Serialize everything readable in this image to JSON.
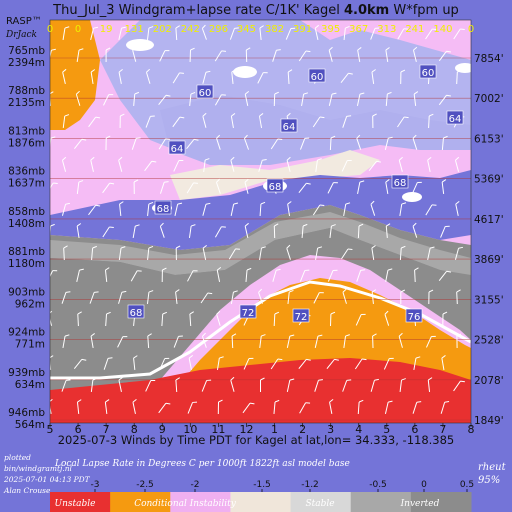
{
  "chart_data": {
    "type": "heatmap",
    "title_prefix": "Thu_Jul_3 Windgram+lapse rate C/1K'  Kagel ",
    "title_bold": "4.0km",
    "title_suffix": "  W*fpm up",
    "brand": "RASP™",
    "brand_sub": "DrJack",
    "top_values": [
      "0",
      "0",
      "19",
      "131",
      "202",
      "242",
      "296",
      "345",
      "382",
      "391",
      "395",
      "367",
      "313",
      "241",
      "140",
      "0"
    ],
    "x_ticks": [
      "5",
      "6",
      "7",
      "8",
      "9",
      "10",
      "11",
      "12",
      "1",
      "2",
      "3",
      "4",
      "5",
      "6",
      "7",
      "8"
    ],
    "xlabel": "2025-07-3 Winds by Time PDT for Kagel at lat,lon= 34.333, -118.385",
    "left_levels": [
      {
        "mb": "765mb",
        "m": "2394m"
      },
      {
        "mb": "788mb",
        "m": "2135m"
      },
      {
        "mb": "813mb",
        "m": "1876m"
      },
      {
        "mb": "836mb",
        "m": "1637m"
      },
      {
        "mb": "858mb",
        "m": "1408m"
      },
      {
        "mb": "881mb",
        "m": "1180m"
      },
      {
        "mb": "903mb",
        "m": "962m"
      },
      {
        "mb": "924mb",
        "m": "771m"
      },
      {
        "mb": "939mb",
        "m": "634m"
      },
      {
        "mb": "946mb",
        "m": "564m"
      }
    ],
    "right_levels": [
      "7854'",
      "7002'",
      "6153'",
      "5369'",
      "4617'",
      "3869'",
      "3155'",
      "2528'",
      "2078'",
      "1849'"
    ],
    "contour_labels": [
      "60",
      "60",
      "60",
      "64",
      "64",
      "64",
      "68",
      "68",
      "68",
      "68",
      "72",
      "72",
      "76"
    ],
    "lapse_title": "Local Lapse Rate in Degrees C per 1000ft   1822ft asl model base",
    "lapse_ticks": [
      "-3",
      "-2.5",
      "-2",
      "-1.5",
      "-1.2",
      "-0.5",
      "0",
      "0.5"
    ],
    "lapse_categories": [
      "Unstable",
      "Conditional Instability",
      "Stable",
      "Inverted"
    ],
    "lapse_colors": [
      "#e83030",
      "#f59a10",
      "#f0b0f0",
      "#f0e6da",
      "#d8d8d8",
      "#a8a8a8",
      "#8c8c8c"
    ],
    "footer_left": [
      "plotted",
      "bin/windgramtj.nl",
      "2025-07-01 04:13 PDT",
      "Alan Crouse"
    ],
    "footer_right": [
      "rheut",
      "95%"
    ]
  }
}
